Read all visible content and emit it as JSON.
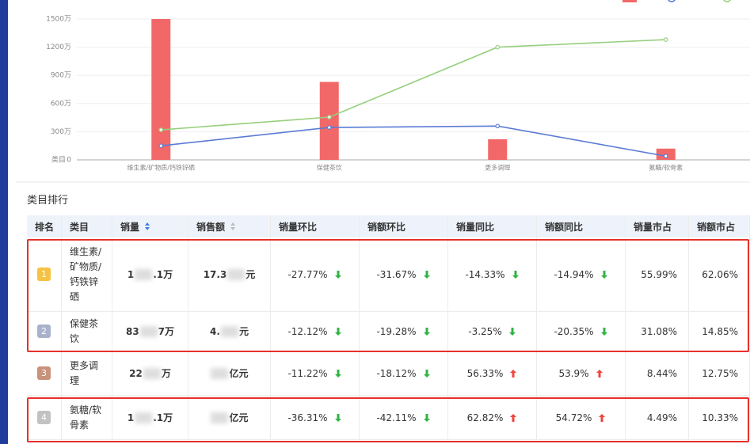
{
  "chart_data": {
    "type": "bar",
    "axis_label": "类目",
    "categories": [
      "维生素/矿物质/钙铁锌硒",
      "保健茶饮",
      "更多调理",
      "氨糖/软骨素"
    ],
    "series": [
      {
        "color": "#f26868",
        "kind": "bar",
        "values": [
          1500,
          830,
          220,
          120
        ]
      },
      {
        "color": "#5b7bd5",
        "kind": "line",
        "values": [
          150,
          345,
          360,
          40
        ]
      },
      {
        "color": "#96cf7d",
        "kind": "line",
        "values": [
          320,
          455,
          1200,
          1280
        ]
      }
    ],
    "ylim": [
      0,
      1500
    ],
    "yticks": [
      0,
      {
        "value": 300,
        "label": "300万"
      },
      {
        "value": 600,
        "label": "600万"
      },
      {
        "value": 900,
        "label": "900万"
      },
      {
        "value": 1200,
        "label": "1200万"
      },
      {
        "value": 1500,
        "label": "1500万"
      }
    ],
    "grid": true
  },
  "section_title": "类目排行",
  "table": {
    "header": [
      "排名",
      "类目",
      "销量",
      "销售额",
      "销量环比",
      "销额环比",
      "销量同比",
      "销额同比",
      "销量市占",
      "销额市占"
    ],
    "rows": [
      [
        "1",
        "维生素/矿物质/钙铁锌硒",
        {
          "pre": "1",
          "post": ".1万"
        },
        {
          "pre": "17.3",
          "post": "元"
        },
        "-27.77%",
        "-31.67%",
        "-14.33%",
        "-14.94%",
        "55.99%",
        "62.06%"
      ],
      [
        "2",
        "保健茶饮",
        {
          "pre": "83",
          "post": "7万"
        },
        {
          "pre": "4.",
          "post": "元"
        },
        "-12.12%",
        "-19.28%",
        "-3.25%",
        "-20.35%",
        "31.08%",
        "14.85%"
      ],
      [
        "3",
        "更多调理",
        {
          "pre": "22",
          "post": "万"
        },
        {
          "pre": "",
          "post": "亿元"
        },
        "-11.22%",
        "-18.12%",
        "56.33%",
        "53.9%",
        "8.44%",
        "12.75%"
      ],
      [
        "4",
        "氨糖/软骨素",
        {
          "pre": "1",
          "post": ".1万"
        },
        {
          "pre": "",
          "post": "亿元"
        },
        "-36.31%",
        "-42.11%",
        "62.82%",
        "54.72%",
        "4.49%",
        "10.33%"
      ]
    ]
  }
}
